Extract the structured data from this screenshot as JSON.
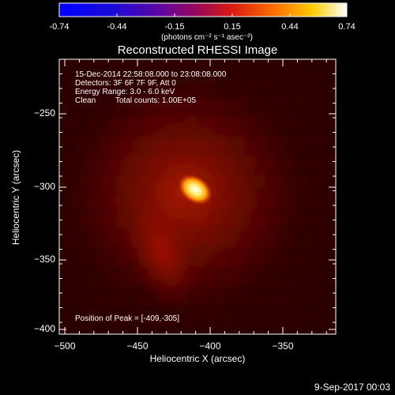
{
  "colorbar": {
    "tick_labels": [
      "-0.74",
      "-0.44",
      "-0.15",
      "0.15",
      "0.44",
      "0.74"
    ],
    "units": "(photons cm⁻² s⁻¹ asec⁻²)",
    "min": -0.74,
    "max": 0.74
  },
  "image": {
    "title": "Reconstructed RHESSI Image",
    "info": {
      "time_range": "15-Dec-2014 22:58:08.000 to 23:08:08.000",
      "detectors": "Detectors: 3F 6F 7F 9F, Att 0",
      "energy_range": "Energy Range: 3.0 - 6.0 keV",
      "method_label": "Clean",
      "total_counts": "Total counts: 1.00E+05"
    },
    "peak_label": "Position of Peak = [-409,-305]",
    "peak_position": [
      -409,
      -305
    ]
  },
  "axes": {
    "xlabel": "Heliocentric X (arcsec)",
    "ylabel": "Heliocentric Y (arcsec)",
    "x_tick_labels": [
      "−500",
      "−450",
      "−400",
      "−350"
    ],
    "y_tick_labels": [
      "−250",
      "−300",
      "−350",
      "−400"
    ]
  },
  "footer": {
    "date_stamp": "9-Sep-2017 00:03"
  }
}
